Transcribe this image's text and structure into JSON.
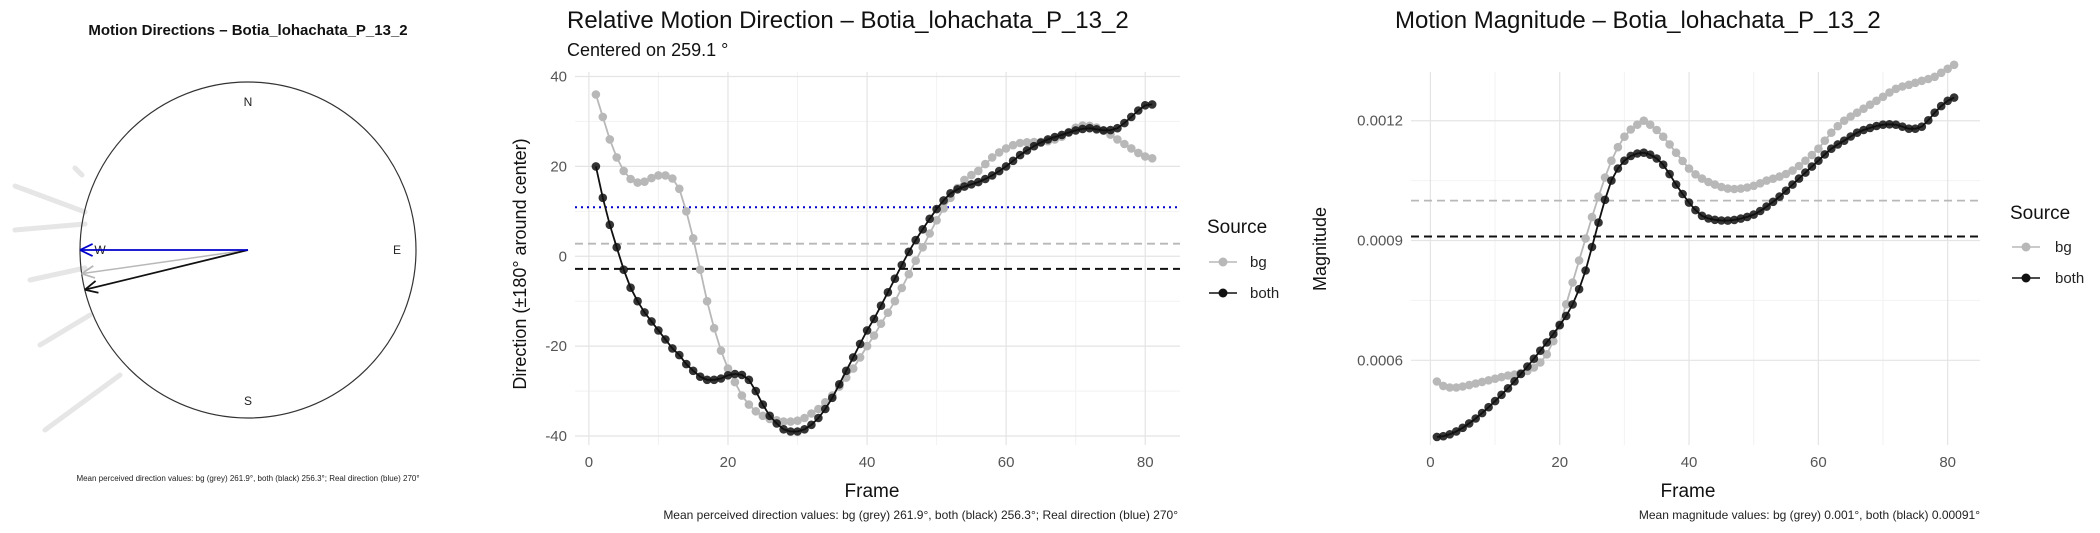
{
  "colors": {
    "bg": "#b8b8b8",
    "both": "#111111",
    "real": "#0000cc"
  },
  "chart_data": [
    {
      "type": "polar-arrows",
      "title": "Motion Directions – Botia_lohachata_P_13_2",
      "compass_labels": [
        "N",
        "E",
        "S",
        "W"
      ],
      "arrows": [
        {
          "name": "bg",
          "angle_deg": 261.9
        },
        {
          "name": "both",
          "angle_deg": 256.3
        },
        {
          "name": "real",
          "angle_deg": 270
        }
      ],
      "caption": "Mean perceived direction values: bg (grey) 261.9°, both (black) 256.3°; Real direction (blue) 270°"
    },
    {
      "type": "line",
      "title": "Relative Motion Direction – Botia_lohachata_P_13_2",
      "subtitle": "Centered on  259.1 °",
      "xlabel": "Frame",
      "ylabel": "Direction (±180° around center)",
      "xlim": [
        -2,
        85
      ],
      "ylim": [
        -42,
        41
      ],
      "xticks": [
        0,
        20,
        40,
        60,
        80
      ],
      "yticks": [
        -40,
        -20,
        0,
        20,
        40
      ],
      "legend_title": "Source",
      "legend_position": "right",
      "hlines": [
        {
          "y": 10.9,
          "style": "dotted",
          "color": "real"
        },
        {
          "y": 2.8,
          "style": "dashed",
          "color": "bg"
        },
        {
          "y": -2.8,
          "style": "dashed",
          "color": "both"
        }
      ],
      "series": [
        {
          "name": "bg",
          "color": "bg",
          "keys": [
            [
              1,
              36
            ],
            [
              2,
              31
            ],
            [
              3,
              26
            ],
            [
              4,
              22
            ],
            [
              5,
              19
            ],
            [
              6,
              17.2
            ],
            [
              7,
              16.4
            ],
            [
              8,
              16.6
            ],
            [
              9,
              17.4
            ],
            [
              10,
              18
            ],
            [
              11,
              18
            ],
            [
              12,
              17.3
            ],
            [
              13,
              15
            ],
            [
              14,
              10
            ],
            [
              15,
              4
            ],
            [
              16,
              -3
            ],
            [
              17,
              -10
            ],
            [
              18,
              -16
            ],
            [
              19,
              -21
            ],
            [
              20,
              -25
            ],
            [
              21,
              -28
            ],
            [
              22,
              -31
            ],
            [
              23,
              -33
            ],
            [
              24,
              -34.5
            ],
            [
              25,
              -35.5
            ],
            [
              26,
              -36.2
            ],
            [
              27,
              -36.5
            ],
            [
              28,
              -36.8
            ],
            [
              29,
              -36.8
            ],
            [
              30,
              -36.6
            ],
            [
              31,
              -36
            ],
            [
              32,
              -35
            ],
            [
              33,
              -34
            ],
            [
              34,
              -32.5
            ],
            [
              35,
              -31
            ],
            [
              36,
              -29
            ],
            [
              37,
              -27
            ],
            [
              38,
              -25
            ],
            [
              39,
              -22.5
            ],
            [
              40,
              -20
            ],
            [
              42,
              -15
            ],
            [
              44,
              -10
            ],
            [
              46,
              -4
            ],
            [
              48,
              2
            ],
            [
              50,
              8
            ],
            [
              52,
              13
            ],
            [
              54,
              17
            ],
            [
              56,
              19
            ],
            [
              58,
              22
            ],
            [
              60,
              24
            ],
            [
              62,
              25.2
            ],
            [
              64,
              25.4
            ],
            [
              66,
              25.6
            ],
            [
              68,
              26.6
            ],
            [
              70,
              28.6
            ],
            [
              71,
              29.1
            ],
            [
              72,
              29
            ],
            [
              74,
              28
            ],
            [
              76,
              26
            ],
            [
              78,
              24
            ],
            [
              80,
              22.2
            ],
            [
              81,
              21.8
            ]
          ]
        },
        {
          "name": "both",
          "color": "both",
          "keys": [
            [
              1,
              20
            ],
            [
              2,
              13
            ],
            [
              3,
              7
            ],
            [
              4,
              2
            ],
            [
              5,
              -3
            ],
            [
              6,
              -7
            ],
            [
              7,
              -10
            ],
            [
              8,
              -12.5
            ],
            [
              9,
              -14.5
            ],
            [
              10,
              -16.5
            ],
            [
              11,
              -18.5
            ],
            [
              12,
              -20.5
            ],
            [
              13,
              -22
            ],
            [
              14,
              -24
            ],
            [
              15,
              -25.5
            ],
            [
              16,
              -26.8
            ],
            [
              17,
              -27.5
            ],
            [
              18,
              -27.5
            ],
            [
              19,
              -27.2
            ],
            [
              20,
              -26.5
            ],
            [
              21,
              -26.2
            ],
            [
              22,
              -26.4
            ],
            [
              23,
              -27.5
            ],
            [
              24,
              -30
            ],
            [
              25,
              -33
            ],
            [
              26,
              -35.5
            ],
            [
              27,
              -37.2
            ],
            [
              28,
              -38.5
            ],
            [
              29,
              -39
            ],
            [
              30,
              -39
            ],
            [
              31,
              -38.5
            ],
            [
              32,
              -37.5
            ],
            [
              33,
              -36
            ],
            [
              34,
              -34
            ],
            [
              35,
              -31.5
            ],
            [
              36,
              -28.5
            ],
            [
              37,
              -25.5
            ],
            [
              38,
              -22.5
            ],
            [
              39,
              -19.5
            ],
            [
              40,
              -16.5
            ],
            [
              42,
              -11
            ],
            [
              44,
              -5
            ],
            [
              46,
              1
            ],
            [
              48,
              6
            ],
            [
              50,
              10.5
            ],
            [
              52,
              14
            ],
            [
              54,
              15.5
            ],
            [
              56,
              16.5
            ],
            [
              58,
              18
            ],
            [
              60,
              20
            ],
            [
              62,
              22.5
            ],
            [
              64,
              24.5
            ],
            [
              66,
              26
            ],
            [
              68,
              27
            ],
            [
              70,
              28
            ],
            [
              72,
              28.5
            ],
            [
              74,
              28
            ],
            [
              76,
              28.5
            ],
            [
              78,
              31
            ],
            [
              80,
              33.6
            ],
            [
              81,
              33.8
            ]
          ]
        }
      ],
      "caption": "Mean perceived direction values: bg (grey) 261.9°, both (black) 256.3°; Real direction (blue) 270°"
    },
    {
      "type": "line",
      "title": "Motion Magnitude – Botia_lohachata_P_13_2",
      "xlabel": "Frame",
      "ylabel": "Magnitude",
      "xlim": [
        -3,
        85
      ],
      "ylim": [
        0.000388,
        0.001322
      ],
      "xticks": [
        0,
        20,
        40,
        60,
        80
      ],
      "yticks": [
        0.0006,
        0.0009,
        0.0012
      ],
      "ytick_labels": [
        "0.0006",
        "0.0009",
        "0.0012"
      ],
      "legend_title": "Source",
      "legend_position": "right",
      "hlines": [
        {
          "y": 0.001,
          "style": "dashed",
          "color": "bg"
        },
        {
          "y": 0.00091,
          "style": "dashed",
          "color": "both"
        }
      ],
      "series": [
        {
          "name": "bg",
          "color": "bg",
          "keys": [
            [
              1,
              0.000547
            ],
            [
              2,
              0.000536
            ],
            [
              3,
              0.000532
            ],
            [
              4,
              0.000532
            ],
            [
              6,
              0.000538
            ],
            [
              8,
              0.000546
            ],
            [
              10,
              0.000554
            ],
            [
              12,
              0.000562
            ],
            [
              14,
              0.000568
            ],
            [
              16,
              0.000582
            ],
            [
              18,
              0.000615
            ],
            [
              20,
              0.00069
            ],
            [
              22,
              0.000795
            ],
            [
              24,
              0.000905
            ],
            [
              26,
              0.00101
            ],
            [
              28,
              0.0011
            ],
            [
              30,
              0.00116
            ],
            [
              32,
              0.00119
            ],
            [
              33,
              0.0012
            ],
            [
              34,
              0.00119
            ],
            [
              36,
              0.00116
            ],
            [
              38,
              0.00112
            ],
            [
              40,
              0.00108
            ],
            [
              42,
              0.001055
            ],
            [
              44,
              0.00104
            ],
            [
              46,
              0.00103
            ],
            [
              48,
              0.00103
            ],
            [
              50,
              0.001037
            ],
            [
              52,
              0.00105
            ],
            [
              54,
              0.00106
            ],
            [
              56,
              0.001075
            ],
            [
              58,
              0.0011
            ],
            [
              60,
              0.00113
            ],
            [
              62,
              0.00117
            ],
            [
              64,
              0.0012
            ],
            [
              66,
              0.00122
            ],
            [
              68,
              0.00124
            ],
            [
              70,
              0.00126
            ],
            [
              72,
              0.00128
            ],
            [
              74,
              0.00129
            ],
            [
              76,
              0.0013
            ],
            [
              78,
              0.00131
            ],
            [
              80,
              0.00133
            ],
            [
              81,
              0.00134
            ]
          ]
        },
        {
          "name": "both",
          "color": "both",
          "keys": [
            [
              0,
              0.000408
            ],
            [
              2,
              0.00041
            ],
            [
              4,
              0.000422
            ],
            [
              6,
              0.000442
            ],
            [
              8,
              0.000468
            ],
            [
              10,
              0.000498
            ],
            [
              12,
              0.00053
            ],
            [
              14,
              0.000566
            ],
            [
              16,
              0.000604
            ],
            [
              18,
              0.000645
            ],
            [
              20,
              0.000688
            ],
            [
              22,
              0.00074
            ],
            [
              24,
              0.000825
            ],
            [
              26,
              0.000945
            ],
            [
              28,
              0.00105
            ],
            [
              30,
              0.0011
            ],
            [
              32,
              0.001118
            ],
            [
              33,
              0.00112
            ],
            [
              34,
              0.001115
            ],
            [
              36,
              0.00109
            ],
            [
              38,
              0.00104
            ],
            [
              40,
              0.000995
            ],
            [
              42,
              0.000962
            ],
            [
              44,
              0.000952
            ],
            [
              46,
              0.00095
            ],
            [
              48,
              0.000955
            ],
            [
              50,
              0.000965
            ],
            [
              52,
              0.000985
            ],
            [
              54,
              0.00101
            ],
            [
              56,
              0.00104
            ],
            [
              58,
              0.00107
            ],
            [
              60,
              0.0011
            ],
            [
              62,
              0.00113
            ],
            [
              64,
              0.00115
            ],
            [
              66,
              0.00117
            ],
            [
              68,
              0.001182
            ],
            [
              70,
              0.00119
            ],
            [
              72,
              0.00119
            ],
            [
              74,
              0.00118
            ],
            [
              75,
              0.00118
            ],
            [
              76,
              0.001185
            ],
            [
              78,
              0.00122
            ],
            [
              80,
              0.00125
            ],
            [
              81,
              0.001258
            ]
          ]
        }
      ],
      "caption": "Mean magnitude values: bg (grey) 0.001°, both (black) 0.00091°"
    }
  ]
}
